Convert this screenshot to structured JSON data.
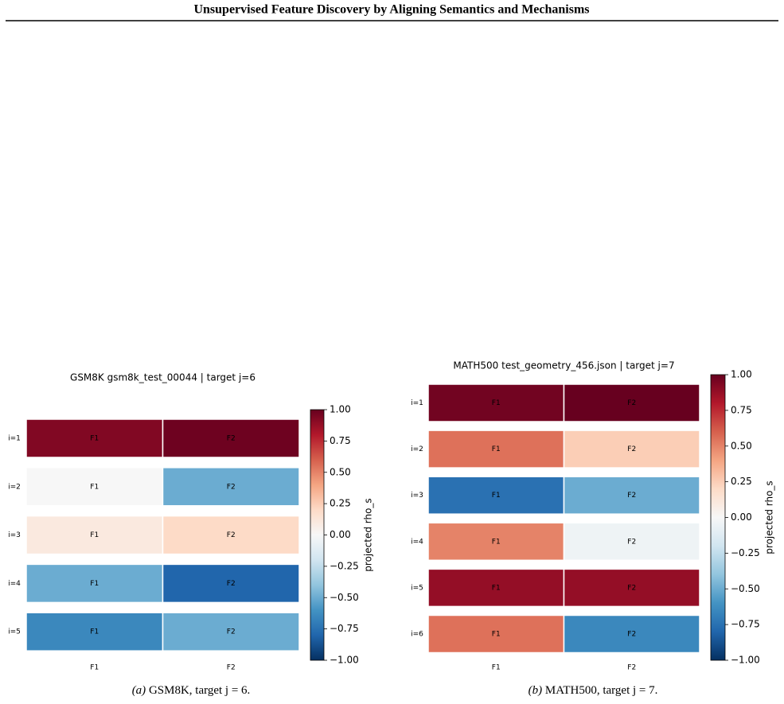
{
  "header": {
    "title": "Unsupervised Feature Discovery by Aligning Semantics and Mechanisms"
  },
  "chart_data": [
    {
      "type": "heatmap",
      "title": "GSM8K gsm8k_test_00044 | target j=6",
      "rows": [
        "i=1",
        "i=2",
        "i=3",
        "i=4",
        "i=5"
      ],
      "columns": [
        "F1",
        "F2"
      ],
      "values": [
        [
          0.93,
          0.98
        ],
        [
          0.0,
          -0.5
        ],
        [
          0.1,
          0.2
        ],
        [
          -0.5,
          -0.8
        ],
        [
          -0.65,
          -0.5
        ]
      ],
      "colormap": "RdBu_r",
      "clim": [
        -1,
        1
      ],
      "cticks": [
        {
          "value": 1,
          "label": "1.00"
        },
        {
          "value": 0.75,
          "label": "0.75"
        },
        {
          "value": 0.5,
          "label": "0.50"
        },
        {
          "value": 0.25,
          "label": "0.25"
        },
        {
          "value": 0,
          "label": "0.00"
        },
        {
          "value": -0.25,
          "label": "−0.25"
        },
        {
          "value": -0.5,
          "label": "−0.50"
        },
        {
          "value": -0.75,
          "label": "−0.75"
        },
        {
          "value": -1,
          "label": "−1.00"
        }
      ],
      "colorbar_label": "projected rho_s",
      "caption": {
        "label": "(a)",
        "text": "GSM8K, target j = 6."
      }
    },
    {
      "type": "heatmap",
      "title": "MATH500 test_geometry_456.json | target j=7",
      "rows": [
        "i=1",
        "i=2",
        "i=3",
        "i=4",
        "i=5",
        "i=6"
      ],
      "columns": [
        "F1",
        "F2"
      ],
      "values": [
        [
          0.97,
          1.0
        ],
        [
          0.55,
          0.25
        ],
        [
          -0.75,
          -0.5
        ],
        [
          0.5,
          -0.05
        ],
        [
          0.88,
          0.88
        ],
        [
          0.55,
          -0.65
        ]
      ],
      "colormap": "RdBu_r",
      "clim": [
        -1,
        1
      ],
      "cticks": [
        {
          "value": 1,
          "label": "1.00"
        },
        {
          "value": 0.75,
          "label": "0.75"
        },
        {
          "value": 0.5,
          "label": "0.50"
        },
        {
          "value": 0.25,
          "label": "0.25"
        },
        {
          "value": 0,
          "label": "0.00"
        },
        {
          "value": -0.25,
          "label": "−0.25"
        },
        {
          "value": -0.5,
          "label": "−0.50"
        },
        {
          "value": -0.75,
          "label": "−0.75"
        },
        {
          "value": -1,
          "label": "−1.00"
        }
      ],
      "colorbar_label": "projected rho_s",
      "caption": {
        "label": "(b)",
        "text": "MATH500, target j = 7."
      }
    }
  ]
}
